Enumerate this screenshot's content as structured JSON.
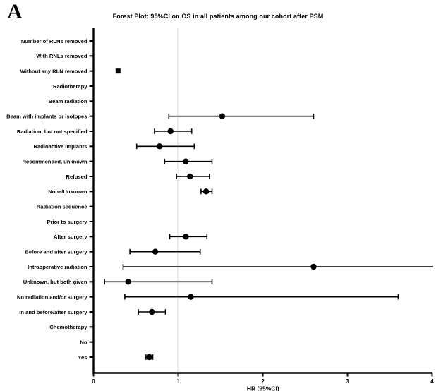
{
  "panel_label": "A",
  "colors": {
    "marker": "#000000",
    "axis": "#000000",
    "reference_line": "#b3b3b3",
    "background": "#ffffff"
  },
  "chart_data": {
    "type": "forest",
    "title": "Forest Plot: 95%CI on OS in all patients among our cohort after PSM",
    "xlabel": "HR (95%CI)",
    "xlim": [
      0,
      4
    ],
    "xticks": [
      0,
      1,
      2,
      3,
      4
    ],
    "reference_line": 1,
    "grid": false,
    "rows": [
      {
        "label": "Number of RLNs removed",
        "hr": null,
        "lo": null,
        "hi": null
      },
      {
        "label": "With RNLs removed",
        "hr": null,
        "lo": null,
        "hi": null
      },
      {
        "label": "Without any RLN removed",
        "hr": 0.29,
        "lo": null,
        "hi": null,
        "marker": "square"
      },
      {
        "label": "Radiotherapy",
        "hr": null,
        "lo": null,
        "hi": null
      },
      {
        "label": "Beam radiation",
        "hr": null,
        "lo": null,
        "hi": null
      },
      {
        "label": "Beam with implants or isotopes",
        "hr": 1.52,
        "lo": 0.89,
        "hi": 2.6
      },
      {
        "label": "Radiation, but not specified",
        "hr": 0.91,
        "lo": 0.72,
        "hi": 1.16
      },
      {
        "label": "Radioactive implants",
        "hr": 0.78,
        "lo": 0.51,
        "hi": 1.19
      },
      {
        "label": "Recommended, unknown",
        "hr": 1.09,
        "lo": 0.84,
        "hi": 1.4
      },
      {
        "label": "Refused",
        "hr": 1.14,
        "lo": 0.98,
        "hi": 1.37
      },
      {
        "label": "None/Unknown",
        "hr": 1.33,
        "lo": 1.27,
        "hi": 1.4
      },
      {
        "label": "Radiation sequence",
        "hr": null,
        "lo": null,
        "hi": null
      },
      {
        "label": "Prior to surgery",
        "hr": null,
        "lo": null,
        "hi": null
      },
      {
        "label": "After surgery",
        "hr": 1.09,
        "lo": 0.9,
        "hi": 1.34
      },
      {
        "label": "Before and after surgery",
        "hr": 0.73,
        "lo": 0.43,
        "hi": 1.26
      },
      {
        "label": "Intraoperative radiation",
        "hr": 2.6,
        "lo": 0.35,
        "hi": 4.05,
        "hi_clipped": true
      },
      {
        "label": "Unknown, but both given",
        "hr": 0.41,
        "lo": 0.13,
        "hi": 1.4
      },
      {
        "label": "No radiation and/or surgery",
        "hr": 1.15,
        "lo": 0.37,
        "hi": 3.6
      },
      {
        "label": "In and before/after surgery",
        "hr": 0.69,
        "lo": 0.53,
        "hi": 0.85
      },
      {
        "label": "Chemotherapy",
        "hr": null,
        "lo": null,
        "hi": null
      },
      {
        "label": "No",
        "hr": null,
        "lo": null,
        "hi": null
      },
      {
        "label": "Yes",
        "hr": 0.66,
        "lo": 0.62,
        "hi": 0.7
      }
    ]
  }
}
